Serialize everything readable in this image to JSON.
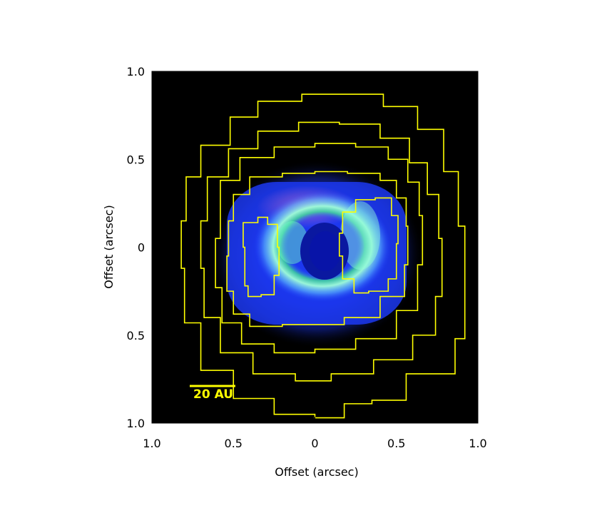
{
  "chart_data": {
    "type": "heatmap",
    "title": "",
    "xlabel": "Offset (arcsec)",
    "ylabel": "Offset (arcsec)",
    "xlim": [
      -1.0,
      1.0
    ],
    "ylim": [
      -1.0,
      1.0
    ],
    "x_ticks": [
      {
        "value": -1.0,
        "label": "1.0"
      },
      {
        "value": -0.5,
        "label": "0.5"
      },
      {
        "value": 0.0,
        "label": "0"
      },
      {
        "value": 0.5,
        "label": "0.5"
      },
      {
        "value": 1.0,
        "label": "1.0"
      }
    ],
    "y_ticks": [
      {
        "value": 1.0,
        "label": "1.0"
      },
      {
        "value": 0.5,
        "label": "0.5"
      },
      {
        "value": 0.0,
        "label": "0"
      },
      {
        "value": -0.5,
        "label": "0.5"
      },
      {
        "value": -1.0,
        "label": "1.0"
      }
    ],
    "background_color": "#000000",
    "contour_color": "#ffff00",
    "contours": [
      {
        "level": 1,
        "points": [
          [
            -0.79,
            0.4
          ],
          [
            -0.7,
            0.58
          ],
          [
            -0.52,
            0.74
          ],
          [
            -0.35,
            0.83
          ],
          [
            -0.08,
            0.87
          ],
          [
            0.18,
            0.87
          ],
          [
            0.42,
            0.8
          ],
          [
            0.63,
            0.67
          ],
          [
            0.79,
            0.43
          ],
          [
            0.88,
            0.12
          ],
          [
            0.92,
            -0.18
          ],
          [
            0.92,
            -0.52
          ],
          [
            0.86,
            -0.72
          ],
          [
            0.56,
            -0.87
          ],
          [
            0.35,
            -0.89
          ],
          [
            0.18,
            -0.97
          ],
          [
            0.0,
            -0.95
          ],
          [
            -0.25,
            -0.86
          ],
          [
            -0.5,
            -0.7
          ],
          [
            -0.7,
            -0.43
          ],
          [
            -0.8,
            -0.12
          ],
          [
            -0.82,
            0.15
          ],
          [
            -0.79,
            0.4
          ]
        ]
      },
      {
        "level": 2,
        "points": [
          [
            -0.66,
            0.4
          ],
          [
            -0.53,
            0.56
          ],
          [
            -0.35,
            0.66
          ],
          [
            -0.1,
            0.71
          ],
          [
            0.15,
            0.7
          ],
          [
            0.4,
            0.62
          ],
          [
            0.58,
            0.48
          ],
          [
            0.69,
            0.3
          ],
          [
            0.76,
            0.05
          ],
          [
            0.78,
            -0.28
          ],
          [
            0.74,
            -0.5
          ],
          [
            0.6,
            -0.64
          ],
          [
            0.36,
            -0.72
          ],
          [
            0.1,
            -0.76
          ],
          [
            -0.12,
            -0.72
          ],
          [
            -0.38,
            -0.6
          ],
          [
            -0.58,
            -0.4
          ],
          [
            -0.68,
            -0.12
          ],
          [
            -0.7,
            0.15
          ],
          [
            -0.66,
            0.4
          ]
        ]
      },
      {
        "level": 3,
        "points": [
          [
            -0.58,
            0.38
          ],
          [
            -0.46,
            0.51
          ],
          [
            -0.25,
            0.57
          ],
          [
            0.0,
            0.59
          ],
          [
            0.25,
            0.57
          ],
          [
            0.45,
            0.5
          ],
          [
            0.57,
            0.37
          ],
          [
            0.64,
            0.18
          ],
          [
            0.66,
            -0.1
          ],
          [
            0.63,
            -0.36
          ],
          [
            0.5,
            -0.52
          ],
          [
            0.25,
            -0.58
          ],
          [
            0.0,
            -0.6
          ],
          [
            -0.25,
            -0.55
          ],
          [
            -0.45,
            -0.43
          ],
          [
            -0.57,
            -0.23
          ],
          [
            -0.61,
            0.05
          ],
          [
            -0.58,
            0.38
          ]
        ]
      },
      {
        "level": 4,
        "points": [
          [
            -0.5,
            0.3
          ],
          [
            -0.4,
            0.4
          ],
          [
            -0.2,
            0.42
          ],
          [
            0.0,
            0.43
          ],
          [
            0.2,
            0.42
          ],
          [
            0.4,
            0.38
          ],
          [
            0.5,
            0.28
          ],
          [
            0.56,
            0.12
          ],
          [
            0.57,
            -0.1
          ],
          [
            0.55,
            -0.28
          ],
          [
            0.4,
            -0.4
          ],
          [
            0.18,
            -0.44
          ],
          [
            0.0,
            -0.44
          ],
          [
            -0.2,
            -0.45
          ],
          [
            -0.4,
            -0.38
          ],
          [
            -0.5,
            -0.25
          ],
          [
            -0.54,
            -0.05
          ],
          [
            -0.53,
            0.15
          ],
          [
            -0.5,
            0.3
          ]
        ]
      },
      {
        "level": 5,
        "points": [
          [
            -0.44,
            0.14
          ],
          [
            -0.35,
            0.17
          ],
          [
            -0.29,
            0.13
          ],
          [
            -0.23,
            0.0
          ],
          [
            -0.22,
            -0.16
          ],
          [
            -0.25,
            -0.27
          ],
          [
            -0.33,
            -0.28
          ],
          [
            -0.41,
            -0.22
          ],
          [
            -0.43,
            0.0
          ],
          [
            -0.44,
            0.14
          ]
        ]
      },
      {
        "level": 5,
        "points": [
          [
            0.17,
            0.2
          ],
          [
            0.25,
            0.27
          ],
          [
            0.37,
            0.28
          ],
          [
            0.47,
            0.18
          ],
          [
            0.51,
            0.02
          ],
          [
            0.5,
            -0.18
          ],
          [
            0.45,
            -0.25
          ],
          [
            0.33,
            -0.26
          ],
          [
            0.24,
            -0.18
          ],
          [
            0.17,
            -0.05
          ],
          [
            0.15,
            0.08
          ],
          [
            0.17,
            0.2
          ]
        ]
      }
    ],
    "scale_bar": {
      "label": "20 AU",
      "length_arcsec": 0.28
    }
  }
}
